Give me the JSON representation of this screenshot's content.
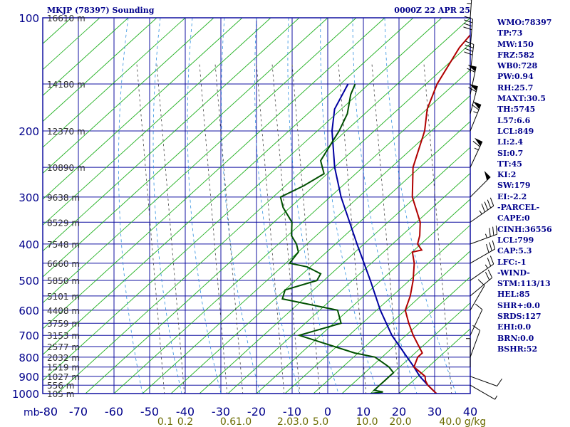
{
  "header": {
    "station": "MKJP (78397) Sounding",
    "time": "0000Z 22 APR 25"
  },
  "indices": [
    "WMO:78397",
    "TP:73",
    "MW:150",
    "FRZ:582",
    "WB0:728",
    "PW:0.94",
    "RH:25.7",
    "MAXT:30.5",
    "TH:5745",
    "L57:6.6",
    "LCL:849",
    "LI:2.4",
    "SI:0.7",
    "TT:45",
    "KI:2",
    "SW:179",
    "EI:-2.2",
    "-PARCEL-",
    "CAPE:0",
    "CINH:36556",
    "LCL:799",
    "CAP:5.3",
    "LFC:-1",
    "-WIND-",
    "STM:113/13",
    "HEL:85",
    "SHR+:0.0",
    "SRDS:127",
    "EHI:0.0",
    "BRN:0.0",
    "BSHR:52"
  ],
  "colors": {
    "frame": "#1010a0",
    "pressure_isobar": "#1010a0",
    "temperature": "#b00000",
    "dewpoint": "#005000",
    "parcel": "#0000a0",
    "dry_adiabat": "#20b020",
    "moist_adiabat": "#3090e0",
    "mixing_ratio": "#404040",
    "label": "#00008b",
    "mixing_label": "#6b6b00"
  },
  "chart_data": {
    "type": "skew-t log-p sounding",
    "x_axis": {
      "label": "",
      "ticks": [
        -80,
        -70,
        -60,
        -50,
        -40,
        -30,
        -20,
        -10,
        0,
        10,
        20,
        30,
        40
      ],
      "tick_labels": [
        "-80",
        "-70",
        "-60",
        "-50",
        "-40",
        "-30",
        "-20",
        "-10",
        "0",
        "10",
        "20",
        "30",
        "40"
      ],
      "range": [
        -80,
        40
      ]
    },
    "y_axis": {
      "unit_label": "mb",
      "scale": "log",
      "ticks": [
        100,
        200,
        300,
        400,
        500,
        600,
        700,
        800,
        900,
        1000
      ],
      "tick_labels": [
        "100",
        "200",
        "300",
        "400",
        "500",
        "600",
        "700",
        "800",
        "900",
        "1000"
      ],
      "range": [
        100,
        1000
      ]
    },
    "height_labels": [
      {
        "p": 100,
        "label": "16610 m"
      },
      {
        "p": 150,
        "label": "14180 m"
      },
      {
        "p": 200,
        "label": "12370 m"
      },
      {
        "p": 250,
        "label": "10890 m"
      },
      {
        "p": 300,
        "label": "9638 m"
      },
      {
        "p": 350,
        "label": "8529 m"
      },
      {
        "p": 400,
        "label": "7548 m"
      },
      {
        "p": 450,
        "label": "6660 m"
      },
      {
        "p": 500,
        "label": "5850 m"
      },
      {
        "p": 550,
        "label": "5101 m"
      },
      {
        "p": 600,
        "label": "4408 m"
      },
      {
        "p": 650,
        "label": "3759 m"
      },
      {
        "p": 700,
        "label": "3153 m"
      },
      {
        "p": 750,
        "label": "2577 m"
      },
      {
        "p": 800,
        "label": "2032 m"
      },
      {
        "p": 850,
        "label": "1519 m"
      },
      {
        "p": 900,
        "label": "1027 m"
      },
      {
        "p": 950,
        "label": "556 m"
      },
      {
        "p": 1000,
        "label": "105 m"
      }
    ],
    "mixing_ratio_labels": [
      "0.1",
      "0.2",
      "0.6",
      "1.0",
      "2.0",
      "3.0",
      "5.0",
      "10.0",
      "20.0",
      "40.0"
    ],
    "mixing_ratio_unit": "g/kg",
    "temperature": [
      [
        1000,
        30.5
      ],
      [
        950,
        25.5
      ],
      [
        925,
        23.5
      ],
      [
        900,
        22
      ],
      [
        850,
        16
      ],
      [
        800,
        14
      ],
      [
        780,
        14
      ],
      [
        700,
        6
      ],
      [
        650,
        1
      ],
      [
        600,
        -4
      ],
      [
        550,
        -7
      ],
      [
        500,
        -11
      ],
      [
        450,
        -16
      ],
      [
        420,
        -20
      ],
      [
        415,
        -18
      ],
      [
        400,
        -21
      ],
      [
        380,
        -23
      ],
      [
        350,
        -27
      ],
      [
        300,
        -37
      ],
      [
        250,
        -46
      ],
      [
        200,
        -54
      ],
      [
        175,
        -60
      ],
      [
        150,
        -65
      ],
      [
        120,
        -70
      ],
      [
        100,
        -72
      ]
    ],
    "dewpoint": [
      [
        1000,
        12
      ],
      [
        990,
        15
      ],
      [
        980,
        12
      ],
      [
        950,
        12
      ],
      [
        925,
        12
      ],
      [
        900,
        12
      ],
      [
        880,
        12
      ],
      [
        850,
        9
      ],
      [
        800,
        2
      ],
      [
        780,
        -5
      ],
      [
        700,
        -26
      ],
      [
        650,
        -18
      ],
      [
        600,
        -23
      ],
      [
        560,
        -42
      ],
      [
        530,
        -44
      ],
      [
        500,
        -38
      ],
      [
        480,
        -39
      ],
      [
        460,
        -45
      ],
      [
        450,
        -51
      ],
      [
        420,
        -52
      ],
      [
        400,
        -55
      ],
      [
        380,
        -59
      ],
      [
        350,
        -63
      ],
      [
        320,
        -70
      ],
      [
        300,
        -74
      ],
      [
        280,
        -71
      ],
      [
        260,
        -69
      ],
      [
        240,
        -74
      ],
      [
        200,
        -78
      ],
      [
        180,
        -81
      ],
      [
        160,
        -86
      ],
      [
        150,
        -88
      ]
    ],
    "parcel": [
      [
        1000,
        30.5
      ],
      [
        950,
        25.5
      ],
      [
        900,
        20.5
      ],
      [
        850,
        16
      ],
      [
        800,
        11
      ],
      [
        700,
        0
      ],
      [
        600,
        -11
      ],
      [
        500,
        -23
      ],
      [
        400,
        -38
      ],
      [
        300,
        -57
      ],
      [
        250,
        -68
      ],
      [
        200,
        -80
      ],
      [
        175,
        -86
      ],
      [
        150,
        -90
      ]
    ],
    "wind_barbs": [
      [
        100,
        4,
        45
      ],
      [
        120,
        5,
        40
      ],
      [
        140,
        7,
        40
      ],
      [
        160,
        12,
        60
      ],
      [
        180,
        15,
        60
      ],
      [
        200,
        22,
        65
      ],
      [
        250,
        25,
        65
      ],
      [
        300,
        45,
        50
      ],
      [
        350,
        55,
        45
      ],
      [
        400,
        70,
        35
      ],
      [
        450,
        60,
        30
      ],
      [
        500,
        55,
        25
      ],
      [
        550,
        50,
        20
      ],
      [
        600,
        30,
        10
      ],
      [
        700,
        25,
        10
      ],
      [
        800,
        20,
        10
      ],
      [
        850,
        0,
        5
      ],
      [
        900,
        110,
        10
      ],
      [
        950,
        120,
        5
      ]
    ]
  }
}
